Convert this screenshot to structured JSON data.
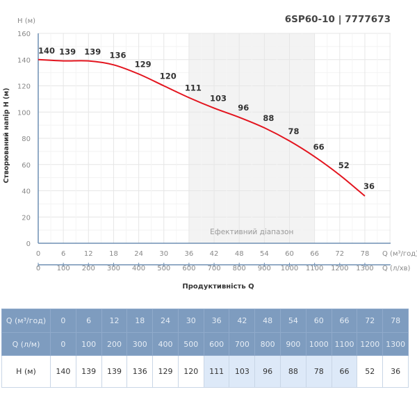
{
  "title": "6SP60-10 | 7777673",
  "chart_data": {
    "type": "line",
    "ylabel_top": "H (м)",
    "ylabel": "Створюваний напір H (м)",
    "xlabel": "Продуктивність Q",
    "x_unit_1": "Q (м³/год)",
    "x_unit_2": "Q (л/хв)",
    "ylim": [
      0,
      160
    ],
    "yticks": [
      0,
      20,
      40,
      60,
      80,
      100,
      120,
      140,
      160
    ],
    "x": [
      0,
      6,
      12,
      18,
      24,
      30,
      36,
      42,
      48,
      54,
      60,
      66,
      72,
      78
    ],
    "x2": [
      0,
      100,
      200,
      300,
      400,
      500,
      600,
      700,
      800,
      900,
      1000,
      1100,
      1200,
      1300
    ],
    "series": [
      {
        "values": [
          140,
          139,
          139,
          136,
          129,
          120,
          111,
          103,
          96,
          88,
          78,
          66,
          52,
          36
        ],
        "color": "#e3141e"
      }
    ],
    "efficient_range": {
      "from": 36,
      "to": 66,
      "label": "Ефективний діапазон"
    },
    "grid": true
  },
  "table": {
    "row_labels": [
      "Q (м³/год)",
      "Q (л/м)",
      "H (м)"
    ],
    "q_m3h": [
      "0",
      "6",
      "12",
      "18",
      "24",
      "30",
      "36",
      "42",
      "48",
      "54",
      "60",
      "66",
      "72",
      "78"
    ],
    "q_lm": [
      "0",
      "100",
      "200",
      "300",
      "400",
      "500",
      "600",
      "700",
      "800",
      "900",
      "1000",
      "1100",
      "1200",
      "1300"
    ],
    "h": [
      "140",
      "139",
      "139",
      "136",
      "129",
      "120",
      "111",
      "103",
      "96",
      "88",
      "78",
      "66",
      "52",
      "36"
    ],
    "efficient_columns": [
      6,
      7,
      8,
      9,
      10,
      11
    ]
  }
}
